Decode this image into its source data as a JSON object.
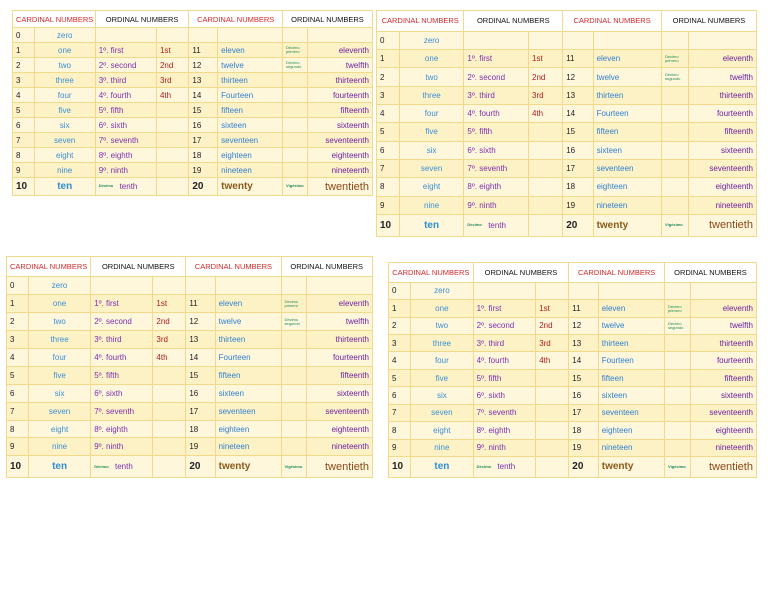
{
  "tables": [
    {
      "headers": [
        "CARDINAL NUMBERS",
        "ORDINAL NUMBERS",
        "CARDINAL NUMBERS",
        "ORDINAL NUMBERS"
      ],
      "rows": [
        {
          "num": "0",
          "word": "zero"
        },
        {
          "num": "1",
          "word": "one",
          "ord": "1º. first",
          "abbr": "1st",
          "num2": "11",
          "word2": "eleven",
          "note": "Décimo primero",
          "ord2": "eleventh"
        },
        {
          "num": "2",
          "word": "two",
          "ord": "2º. second",
          "abbr": "2nd",
          "num2": "12",
          "word2": "twelve",
          "note": "Décimo segundo",
          "ord2": "twelfth"
        },
        {
          "num": "3",
          "word": "three",
          "ord": "3º. third",
          "abbr": "3rd",
          "num2": "13",
          "word2": "thirteen",
          "ord2": "thirteenth"
        },
        {
          "num": "4",
          "word": "four",
          "ord": "4º. fourth",
          "abbr": "4th",
          "num2": "14",
          "word2": "Fourteen",
          "ord2": "fourteenth"
        },
        {
          "num": "5",
          "word": "five",
          "ord": "5º. fifth",
          "num2": "15",
          "word2": "fifteen",
          "ord2": "fifteenth"
        },
        {
          "num": "6",
          "word": "six",
          "ord": "6º. sixth",
          "num2": "16",
          "word2": "sixteen",
          "ord2": "sixteenth"
        },
        {
          "num": "7",
          "word": "seven",
          "ord": "7º. seventh",
          "num2": "17",
          "word2": "seventeen",
          "ord2": "seventeenth"
        },
        {
          "num": "8",
          "word": "eight",
          "ord": "8º. eighth",
          "num2": "18",
          "word2": "eighteen",
          "ord2": "eighteenth"
        },
        {
          "num": "9",
          "word": "nine",
          "ord": "9º. ninth",
          "num2": "19",
          "word2": "nineteen",
          "ord2": "nineteenth"
        },
        {
          "num": "10",
          "word": "ten",
          "ord_note": "Décimo",
          "ord": "tenth",
          "num2": "20",
          "word2": "twenty",
          "note": "Vigésimo",
          "ord2": "twentieth"
        }
      ]
    },
    {
      "headers": [
        "CARDINAL NUMBERS",
        "ORDINAL NUMBERS",
        "CARDINAL NUMBERS",
        "ORDINAL NUMBERS"
      ],
      "rows": [
        {
          "num": "0",
          "word": "zero"
        },
        {
          "num": "1",
          "word": "one",
          "ord": "1º. first",
          "abbr": "1st",
          "num2": "11",
          "word2": "eleven",
          "note": "Décimo primero",
          "ord2": "eleventh"
        },
        {
          "num": "2",
          "word": "two",
          "ord": "2º. second",
          "abbr": "2nd",
          "num2": "12",
          "word2": "twelve",
          "note": "Décimo segundo",
          "ord2": "twelfth"
        },
        {
          "num": "3",
          "word": "three",
          "ord": "3º. third",
          "abbr": "3rd",
          "num2": "13",
          "word2": "thirteen",
          "ord2": "thirteenth"
        },
        {
          "num": "4",
          "word": "four",
          "ord": "4º. fourth",
          "abbr": "4th",
          "num2": "14",
          "word2": "Fourteen",
          "ord2": "fourteenth"
        },
        {
          "num": "5",
          "word": "five",
          "ord": "5º. fifth",
          "num2": "15",
          "word2": "fifteen",
          "ord2": "fifteenth"
        },
        {
          "num": "6",
          "word": "six",
          "ord": "6º. sixth",
          "num2": "16",
          "word2": "sixteen",
          "ord2": "sixteenth"
        },
        {
          "num": "7",
          "word": "seven",
          "ord": "7º. seventh",
          "num2": "17",
          "word2": "seventeen",
          "ord2": "seventeenth"
        },
        {
          "num": "8",
          "word": "eight",
          "ord": "8º. eighth",
          "num2": "18",
          "word2": "eighteen",
          "ord2": "eighteenth"
        },
        {
          "num": "9",
          "word": "nine",
          "ord": "9º. ninth",
          "num2": "19",
          "word2": "nineteen",
          "ord2": "nineteenth"
        },
        {
          "num": "10",
          "word": "ten",
          "ord_note": "Décimo",
          "ord": "tenth",
          "num2": "20",
          "word2": "twenty",
          "note": "Vigésimo",
          "ord2": "twentieth"
        }
      ]
    },
    {
      "headers": [
        "CARDINAL NUMBERS",
        "ORDINAL NUMBERS",
        "CARDINAL NUMBERS",
        "ORDINAL NUMBERS"
      ],
      "rows": [
        {
          "num": "0",
          "word": "zero"
        },
        {
          "num": "1",
          "word": "one",
          "ord": "1º. first",
          "abbr": "1st",
          "num2": "11",
          "word2": "eleven",
          "note": "Décimo primero",
          "ord2": "eleventh"
        },
        {
          "num": "2",
          "word": "two",
          "ord": "2º. second",
          "abbr": "2nd",
          "num2": "12",
          "word2": "twelve",
          "note": "Décimo segundo",
          "ord2": "twelfth"
        },
        {
          "num": "3",
          "word": "three",
          "ord": "3º. third",
          "abbr": "3rd",
          "num2": "13",
          "word2": "thirteen",
          "ord2": "thirteenth"
        },
        {
          "num": "4",
          "word": "four",
          "ord": "4º. fourth",
          "abbr": "4th",
          "num2": "14",
          "word2": "Fourteen",
          "ord2": "fourteenth"
        },
        {
          "num": "5",
          "word": "five",
          "ord": "5º. fifth",
          "num2": "15",
          "word2": "fifteen",
          "ord2": "fifteenth"
        },
        {
          "num": "6",
          "word": "six",
          "ord": "6º. sixth",
          "num2": "16",
          "word2": "sixteen",
          "ord2": "sixteenth"
        },
        {
          "num": "7",
          "word": "seven",
          "ord": "7º. seventh",
          "num2": "17",
          "word2": "seventeen",
          "ord2": "seventeenth"
        },
        {
          "num": "8",
          "word": "eight",
          "ord": "8º. eighth",
          "num2": "18",
          "word2": "eighteen",
          "ord2": "eighteenth"
        },
        {
          "num": "9",
          "word": "nine",
          "ord": "9º. ninth",
          "num2": "19",
          "word2": "nineteen",
          "ord2": "nineteenth"
        },
        {
          "num": "10",
          "word": "ten",
          "ord_note": "Décimo",
          "ord": "tenth",
          "num2": "20",
          "word2": "twenty",
          "note": "Vigésimo",
          "ord2": "twentieth"
        }
      ]
    },
    {
      "headers": [
        "CARDINAL NUMBERS",
        "ORDINAL NUMBERS",
        "CARDINAL NUMBERS",
        "ORDINAL NUMBERS"
      ],
      "rows": [
        {
          "num": "0",
          "word": "zero"
        },
        {
          "num": "1",
          "word": "one",
          "ord": "1º. first",
          "abbr": "1st",
          "num2": "11",
          "word2": "eleven",
          "note": "Décimo primero",
          "ord2": "eleventh"
        },
        {
          "num": "2",
          "word": "two",
          "ord": "2º. second",
          "abbr": "2nd",
          "num2": "12",
          "word2": "twelve",
          "note": "Décimo segundo",
          "ord2": "twelfth"
        },
        {
          "num": "3",
          "word": "three",
          "ord": "3º. third",
          "abbr": "3rd",
          "num2": "13",
          "word2": "thirteen",
          "ord2": "thirteenth"
        },
        {
          "num": "4",
          "word": "four",
          "ord": "4º. fourth",
          "abbr": "4th",
          "num2": "14",
          "word2": "Fourteen",
          "ord2": "fourteenth"
        },
        {
          "num": "5",
          "word": "five",
          "ord": "5º. fifth",
          "num2": "15",
          "word2": "fifteen",
          "ord2": "fifteenth"
        },
        {
          "num": "6",
          "word": "six",
          "ord": "6º. sixth",
          "num2": "16",
          "word2": "sixteen",
          "ord2": "sixteenth"
        },
        {
          "num": "7",
          "word": "seven",
          "ord": "7º. seventh",
          "num2": "17",
          "word2": "seventeen",
          "ord2": "seventeenth"
        },
        {
          "num": "8",
          "word": "eight",
          "ord": "8º. eighth",
          "num2": "18",
          "word2": "eighteen",
          "ord2": "eighteenth"
        },
        {
          "num": "9",
          "word": "nine",
          "ord": "9º. ninth",
          "num2": "19",
          "word2": "nineteen",
          "ord2": "nineteenth"
        },
        {
          "num": "10",
          "word": "ten",
          "ord_note": "Décimo",
          "ord": "tenth",
          "num2": "20",
          "word2": "twenty",
          "note": "Vigésimo",
          "ord2": "twentieth"
        }
      ]
    }
  ]
}
